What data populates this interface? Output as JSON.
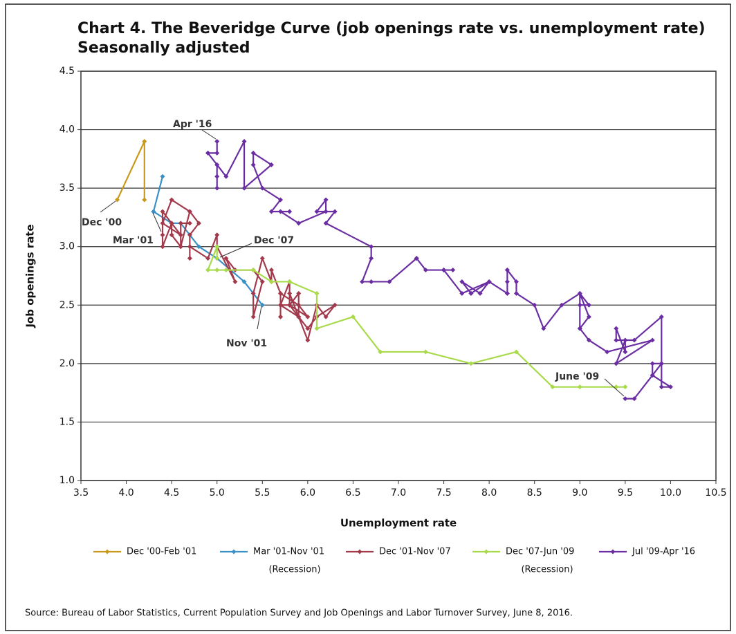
{
  "chart_data": {
    "type": "line",
    "title": "Chart 4. The Beveridge Curve (job openings rate vs. unemployment rate)",
    "subtitle": "Seasonally adjusted",
    "x_label": "Unemployment rate",
    "y_label": "Job openings rate",
    "source": "Source: Bureau of Labor Statistics, Current Population Survey and Job Openings and Labor Turnover Survey, June 8, 2016.",
    "xlim": [
      3.5,
      10.5
    ],
    "ylim": [
      1.0,
      4.5
    ],
    "xticks": [
      3.5,
      {
        "value": 4,
        "label": "4.0"
      },
      4.5,
      {
        "value": 5,
        "label": "5.0"
      },
      5.5,
      {
        "value": 6,
        "label": "6.0"
      },
      6.5,
      {
        "value": 7,
        "label": "7.0"
      },
      7.5,
      {
        "value": 8,
        "label": "8.0"
      },
      8.5,
      {
        "value": 9,
        "label": "9.0"
      },
      9.5,
      {
        "value": 10,
        "label": "10.0"
      },
      10.5
    ],
    "yticks": [
      {
        "value": 1,
        "label": "1.0"
      },
      1.5,
      {
        "value": 2,
        "label": "2.0"
      },
      2.5,
      {
        "value": 3,
        "label": "3.0"
      },
      3.5,
      {
        "value": 4,
        "label": "4.0"
      },
      4.5
    ],
    "grid": true,
    "annotations": [
      "Dec '00",
      "Mar '01",
      "Nov '01",
      "Dec '07",
      "June '09",
      "Apr '16"
    ],
    "series": [
      {
        "name": "Dec '00-Feb '01",
        "color": "#c9991c",
        "x": [
          3.9,
          4.2,
          4.2
        ],
        "values": [
          3.4,
          3.9,
          3.4
        ]
      },
      {
        "name": "Mar '01-Nov '01",
        "note": "(Recession)",
        "color": "#3a8fc4",
        "x": [
          4.3,
          4.4,
          4.3,
          4.5,
          4.6,
          4.8,
          5.0,
          5.3,
          5.5
        ],
        "values": [
          3.3,
          3.6,
          3.3,
          3.2,
          3.2,
          3.0,
          2.9,
          2.7,
          2.5
        ]
      },
      {
        "name": "Dec '01-Nov '07",
        "color": "#a33a4c",
        "x": [
          5.7,
          5.7,
          5.7,
          5.9,
          5.8,
          5.8,
          5.8,
          5.7,
          5.7,
          5.7,
          5.9,
          6.0,
          5.8,
          5.9,
          5.9,
          6.0,
          6.1,
          6.3,
          6.2,
          6.1,
          6.0,
          5.9,
          5.8,
          5.7,
          5.7,
          5.6,
          5.6,
          5.5,
          5.4,
          5.4,
          5.5,
          5.4,
          5.2,
          5.1,
          5.2,
          5.0,
          5.0,
          4.9,
          4.7,
          4.7,
          4.7,
          4.8,
          4.7,
          4.6,
          4.5,
          4.5,
          4.4,
          4.4,
          4.4,
          4.5,
          4.6,
          4.4,
          4.5,
          4.7,
          4.6,
          4.6,
          4.7
        ],
        "values": [
          2.5,
          2.4,
          2.5,
          2.4,
          2.6,
          2.5,
          2.7,
          2.5,
          2.4,
          2.6,
          2.5,
          2.4,
          2.5,
          2.6,
          2.4,
          2.3,
          2.4,
          2.5,
          2.4,
          2.5,
          2.2,
          2.4,
          2.5,
          2.5,
          2.6,
          2.8,
          2.7,
          2.9,
          2.6,
          2.4,
          2.7,
          2.8,
          2.8,
          2.9,
          2.7,
          3.0,
          3.1,
          2.9,
          3.0,
          2.9,
          3.1,
          3.2,
          3.3,
          3.0,
          3.1,
          3.2,
          3.3,
          3.1,
          3.0,
          3.2,
          3.1,
          3.2,
          3.4,
          3.3,
          3.0,
          3.2,
          3.2
        ]
      },
      {
        "name": "Dec '07-Jun '09",
        "note": "(Recession)",
        "color": "#a8da4c",
        "x": [
          5.0,
          5.0,
          4.9,
          5.1,
          5.0,
          5.4,
          5.6,
          5.8,
          6.1,
          6.1,
          6.5,
          6.8,
          7.3,
          7.8,
          8.3,
          8.7,
          9.0,
          9.4,
          9.5
        ],
        "values": [
          2.9,
          3.0,
          2.8,
          2.8,
          2.8,
          2.8,
          2.7,
          2.7,
          2.6,
          2.3,
          2.4,
          2.1,
          2.1,
          2.0,
          2.1,
          1.8,
          1.8,
          1.8,
          1.8
        ]
      },
      {
        "name": "Jul '09-Apr '16",
        "color": "#6a2ea2",
        "x": [
          9.5,
          9.6,
          9.8,
          10.0,
          9.9,
          9.9,
          9.8,
          9.8,
          9.9,
          9.9,
          9.6,
          9.4,
          9.4,
          9.5,
          9.5,
          9.4,
          9.8,
          9.3,
          9.1,
          9.0,
          9.0,
          9.1,
          9.0,
          9.1,
          9.0,
          9.0,
          9.0,
          8.8,
          8.6,
          8.5,
          8.3,
          8.3,
          8.2,
          8.2,
          8.2,
          8.2,
          8.2,
          8.0,
          7.8,
          7.8,
          7.7,
          7.9,
          8.0,
          7.7,
          7.5,
          7.6,
          7.5,
          7.5,
          7.3,
          7.2,
          7.2,
          7.2,
          6.9,
          6.7,
          6.6,
          6.7,
          6.7,
          6.2,
          6.3,
          6.1,
          6.2,
          6.2,
          5.9,
          5.7,
          5.8,
          5.6,
          5.7,
          5.5,
          5.4,
          5.4,
          5.6,
          5.3,
          5.3,
          5.1,
          5.0,
          5.0,
          5.0,
          5.0,
          4.9,
          4.9,
          5.0,
          5.0
        ],
        "values": [
          1.7,
          1.7,
          1.9,
          1.8,
          1.8,
          2.0,
          2.0,
          1.9,
          2.0,
          2.4,
          2.2,
          2.2,
          2.3,
          2.1,
          2.2,
          2.0,
          2.2,
          2.1,
          2.2,
          2.3,
          2.3,
          2.4,
          2.6,
          2.5,
          2.5,
          2.3,
          2.6,
          2.5,
          2.3,
          2.5,
          2.6,
          2.7,
          2.8,
          2.7,
          2.6,
          2.8,
          2.6,
          2.7,
          2.6,
          2.6,
          2.7,
          2.6,
          2.7,
          2.6,
          2.8,
          2.8,
          2.8,
          2.8,
          2.8,
          2.9,
          2.9,
          2.9,
          2.7,
          2.7,
          2.7,
          2.9,
          3.0,
          3.2,
          3.3,
          3.3,
          3.4,
          3.3,
          3.2,
          3.3,
          3.3,
          3.3,
          3.4,
          3.5,
          3.7,
          3.8,
          3.7,
          3.5,
          3.9,
          3.6,
          3.7,
          3.5,
          3.6,
          3.7,
          3.8,
          3.8,
          3.8,
          3.9
        ]
      }
    ]
  }
}
